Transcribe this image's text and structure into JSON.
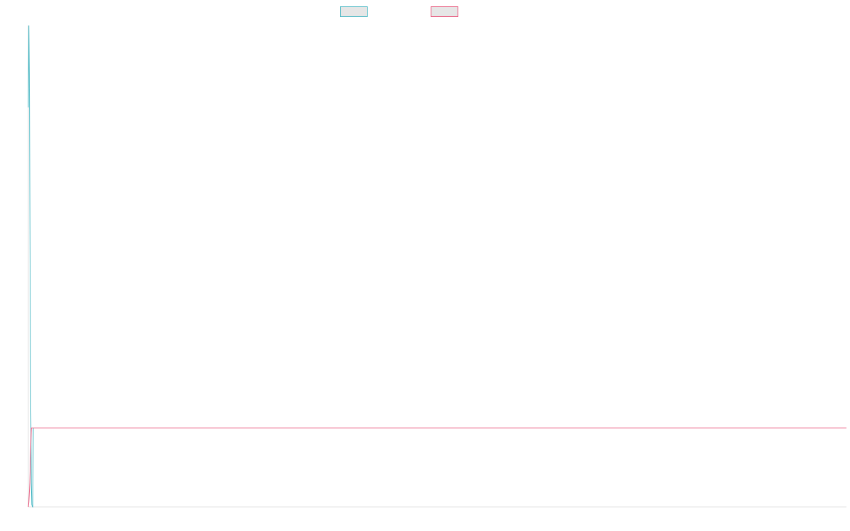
{
  "chart_data": {
    "type": "line",
    "title": "",
    "xlabel": "",
    "ylabel": "",
    "grid": false,
    "legend_position": "top-center",
    "x": [
      0,
      1,
      2,
      3,
      4,
      5,
      6,
      7,
      8,
      9,
      10,
      100,
      200,
      300,
      400,
      500,
      600,
      700,
      800,
      900,
      1000
    ],
    "xlim": [
      0,
      1000
    ],
    "ylim": [
      0,
      100
    ],
    "series": [
      {
        "name": "",
        "color": "#4bb8c4",
        "border_color": "#4bb8c4",
        "values": [
          83,
          100,
          90,
          65,
          40,
          20,
          5,
          0.5,
          0.1,
          0,
          0,
          0,
          0,
          0,
          0,
          0,
          0,
          0,
          0,
          0,
          0
        ],
        "baseline": 16.4
      },
      {
        "name": "",
        "color": "#e8547a",
        "border_color": "#e8547a",
        "values": [
          0,
          1,
          3,
          5,
          9,
          13,
          16.4,
          16.4,
          16.4,
          16.4,
          16.4,
          16.4,
          16.4,
          16.4,
          16.4,
          16.4,
          16.4,
          16.4,
          16.4,
          16.4,
          16.4
        ],
        "baseline": 0
      }
    ]
  }
}
